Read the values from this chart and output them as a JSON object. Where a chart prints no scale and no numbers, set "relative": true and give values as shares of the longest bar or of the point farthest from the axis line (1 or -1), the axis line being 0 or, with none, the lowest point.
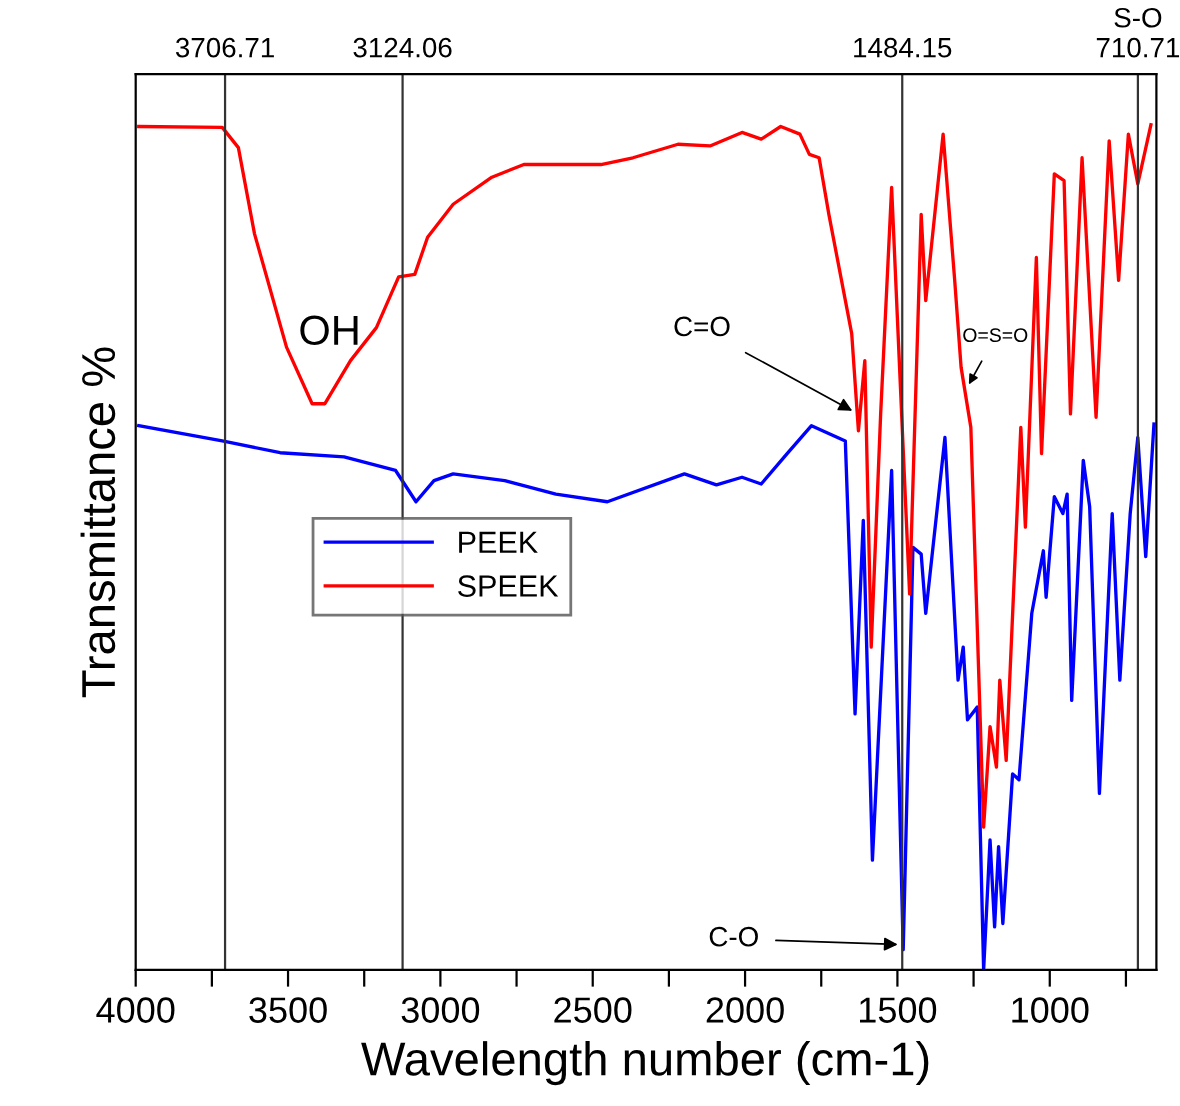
{
  "chart_data": {
    "type": "line",
    "relative": true,
    "xlabel": "Wavelength number (cm-1)",
    "ylabel": "Transmittance %",
    "xlim": [
      4000,
      650
    ],
    "xticks": [
      4000,
      {
        "value": 3750,
        "label": null
      },
      3500,
      {
        "value": 3250,
        "label": null
      },
      3000,
      {
        "value": 2750,
        "label": null
      },
      2500,
      {
        "value": 2250,
        "label": null
      },
      2000,
      {
        "value": 1750,
        "label": null
      },
      1500,
      {
        "value": 1250,
        "label": null
      },
      1000,
      {
        "value": 750,
        "label": null
      }
    ],
    "grid": false,
    "legend": "center left",
    "marker": "none",
    "line_style": "solid",
    "series": [
      {
        "name": "PEEK",
        "color": "#0000ff",
        "x": [
          3990,
          3716,
          3526,
          3316,
          3147,
          3080,
          3021,
          2958,
          2789,
          2621,
          2452,
          2199,
          2094,
          2010,
          1947,
          1862,
          1782,
          1671,
          1639,
          1612,
          1582,
          1519,
          1481,
          1449,
          1422,
          1407,
          1344,
          1301,
          1284,
          1270,
          1238,
          1217,
          1196,
          1181,
          1168,
          1154,
          1122,
          1101,
          1059,
          1021,
          1012,
          985,
          957,
          943,
          928,
          890,
          869,
          837,
          795,
          770,
          736,
          711,
          685,
          658
        ],
        "values": [
          0.644,
          0.626,
          0.612,
          0.607,
          0.591,
          0.554,
          0.579,
          0.587,
          0.579,
          0.563,
          0.554,
          0.587,
          0.574,
          0.583,
          0.575,
          0.611,
          0.644,
          0.626,
          0.303,
          0.532,
          0.13,
          0.591,
          0.024,
          0.5,
          0.492,
          0.422,
          0.63,
          0.343,
          0.382,
          0.296,
          0.311,
          0.0,
          0.154,
          0.051,
          0.146,
          0.055,
          0.232,
          0.225,
          0.422,
          0.496,
          0.441,
          0.56,
          0.54,
          0.563,
          0.319,
          0.603,
          0.548,
          0.209,
          0.54,
          0.343,
          0.54,
          0.63,
          0.489,
          0.646
        ]
      },
      {
        "name": "SPEEK",
        "color": "#ff0000",
        "x": [
          3990,
          3716,
          3663,
          3610,
          3505,
          3421,
          3379,
          3295,
          3210,
          3137,
          3084,
          3042,
          2958,
          2831,
          2726,
          2579,
          2473,
          2368,
          2220,
          2115,
          2010,
          1947,
          1883,
          1820,
          1789,
          1757,
          1725,
          1650,
          1628,
          1607,
          1586,
          1555,
          1519,
          1491,
          1460,
          1422,
          1407,
          1350,
          1312,
          1291,
          1259,
          1217,
          1196,
          1175,
          1164,
          1143,
          1095,
          1080,
          1044,
          1027,
          985,
          953,
          932,
          894,
          848,
          805,
          774,
          742,
          711,
          668
        ],
        "values": [
          0.998,
          0.997,
          0.973,
          0.871,
          0.737,
          0.67,
          0.67,
          0.721,
          0.76,
          0.82,
          0.823,
          0.867,
          0.906,
          0.938,
          0.953,
          0.953,
          0.953,
          0.961,
          0.977,
          0.975,
          0.991,
          0.983,
          0.998,
          0.989,
          0.965,
          0.961,
          0.894,
          0.753,
          0.638,
          0.721,
          0.382,
          0.658,
          0.926,
          0.697,
          0.445,
          0.894,
          0.792,
          0.989,
          0.816,
          0.713,
          0.642,
          0.169,
          0.288,
          0.24,
          0.343,
          0.248,
          0.642,
          0.524,
          0.843,
          0.611,
          0.942,
          0.934,
          0.658,
          0.961,
          0.654,
          0.981,
          0.816,
          0.989,
          0.93,
          1.0
        ]
      }
    ],
    "ref_lines": [
      {
        "axis": "x",
        "value": 3706.71,
        "label": "3706.71",
        "color": "#333333"
      },
      {
        "axis": "x",
        "value": 3124.06,
        "label": "3124.06",
        "color": "#333333"
      },
      {
        "axis": "x",
        "value": 1484.15,
        "label": "1484.15",
        "color": "#333333"
      },
      {
        "axis": "x",
        "value": 710.71,
        "label": "S-O\n710.71",
        "color": "#333333"
      }
    ],
    "annotations": [
      "OH",
      {
        "text": "C=O",
        "x": 1640,
        "y": 0.66
      },
      {
        "text": "O=S=O",
        "x": 1270,
        "y": 0.69
      },
      {
        "text": "C-O",
        "x": 1490,
        "y": 0.03
      }
    ]
  }
}
